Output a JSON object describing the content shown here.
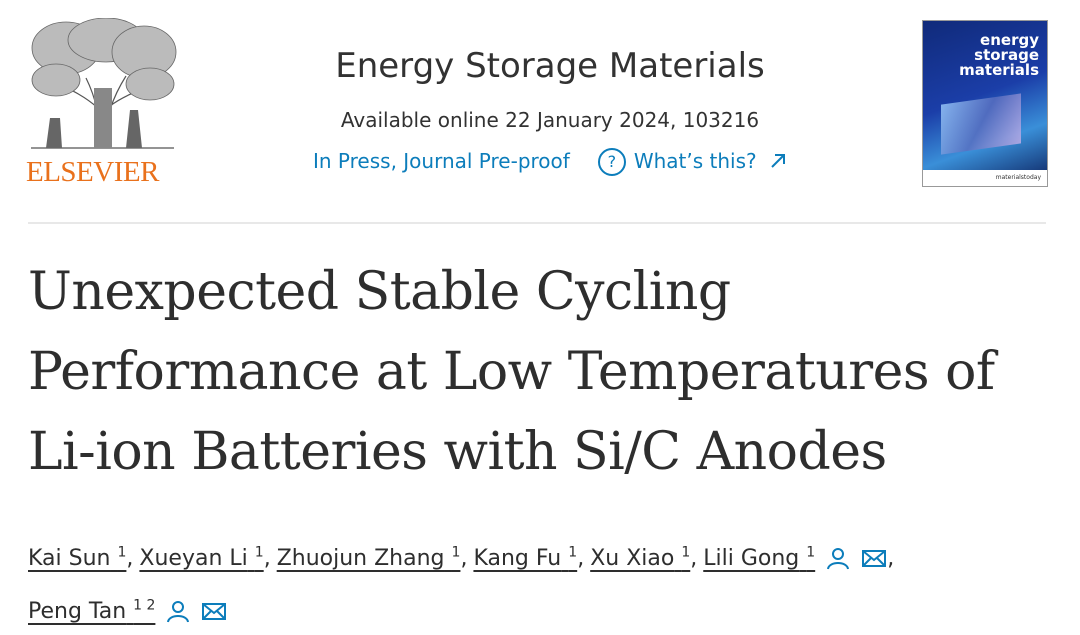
{
  "publisher": "ELSEVIER",
  "header": {
    "journal": "Energy Storage Materials",
    "available": "Available online 22 January 2024, 103216",
    "status": "In Press, Journal Pre-proof",
    "help_icon": "?",
    "whats_this": "What’s this?"
  },
  "cover": {
    "title": [
      "energy",
      "storage",
      "materials"
    ],
    "brand": "materialstoday"
  },
  "article": {
    "title_lines": [
      "Unexpected Stable Cycling",
      "Performance at Low Temperatures of",
      "Li-ion Batteries with Si/C Anodes"
    ],
    "authors": [
      {
        "name": "Kai Sun",
        "sup": "1",
        "sep": ","
      },
      {
        "name": "Xueyan Li",
        "sup": "1",
        "sep": ","
      },
      {
        "name": "Zhuojun Zhang",
        "sup": "1",
        "sep": ","
      },
      {
        "name": "Kang Fu",
        "sup": "1",
        "sep": ","
      },
      {
        "name": "Xu Xiao",
        "sup": "1",
        "sep": ","
      },
      {
        "name": "Lili Gong",
        "sup": "1",
        "sep": ",",
        "corresponding": true
      },
      {
        "name": "Peng Tan",
        "sup": "1 2",
        "corresponding": true
      }
    ]
  }
}
